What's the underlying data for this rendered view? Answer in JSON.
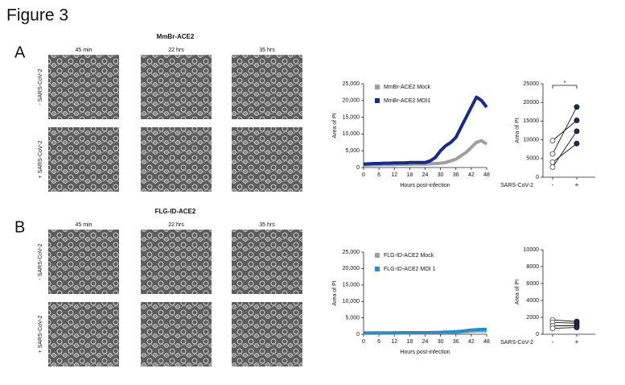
{
  "figure": {
    "title": "Figure 3",
    "panels": [
      {
        "label": "A",
        "title": "MmBr-ACE2",
        "columns": [
          "45 min",
          "22 hrs",
          "35 hrs"
        ],
        "rows": [
          "- SARS-CoV-2",
          "+ SARS-CoV-2"
        ]
      },
      {
        "label": "B",
        "title": "FLG-ID-ACE2",
        "columns": [
          "45 min",
          "22 hrs",
          "35 hrs"
        ],
        "rows": [
          "- SARS-CoV-2",
          "+ SARS-CoV-2"
        ]
      }
    ]
  },
  "chart_data": [
    {
      "type": "line",
      "xlabel": "Hours post-infection",
      "ylabel": "Area of PI",
      "legend": "upper left",
      "x": [
        0,
        2,
        4,
        6,
        8,
        10,
        12,
        14,
        16,
        18,
        20,
        22,
        24,
        26,
        28,
        30,
        32,
        34,
        36,
        38,
        40,
        42,
        44,
        46,
        48
      ],
      "xlim": [
        0,
        48
      ],
      "xticks": [
        0,
        6,
        12,
        18,
        24,
        30,
        36,
        42,
        48
      ],
      "ylim": [
        0,
        25000
      ],
      "yticks": [
        0,
        {
          "value": 5000,
          "label": "5,000"
        },
        {
          "value": 10000,
          "label": "10,000"
        },
        {
          "value": 15000,
          "label": "15,000"
        },
        {
          "value": 20000,
          "label": "20,000"
        },
        {
          "value": 25000,
          "label": "25,000"
        }
      ],
      "series": [
        {
          "name": "MmBr-ACE2 Mock",
          "color": "#9e9e9e",
          "values": [
            800,
            800,
            850,
            850,
            900,
            900,
            900,
            950,
            950,
            950,
            1000,
            1000,
            1000,
            1100,
            1200,
            1300,
            1500,
            2000,
            2500,
            3500,
            4500,
            6000,
            7500,
            8000,
            7000
          ]
        },
        {
          "name": "MmBr-ACE2 MOI1",
          "color": "#1a2a8c",
          "values": [
            1000,
            1100,
            1200,
            1200,
            1300,
            1300,
            1400,
            1400,
            1400,
            1500,
            1500,
            1500,
            1500,
            2000,
            3000,
            5000,
            6500,
            7500,
            9000,
            12000,
            15000,
            18000,
            21000,
            20000,
            18000
          ]
        }
      ]
    },
    {
      "type": "paired_dot",
      "xlabel": "SARS-CoV-2",
      "ylabel": "Area of PI",
      "annotation": "*",
      "color": "#1f2d5c",
      "categories": [
        "-",
        "+"
      ],
      "ylim": [
        0,
        25000
      ],
      "yticks": [
        0,
        5000,
        10000,
        15000,
        20000,
        25000
      ],
      "series": [
        {
          "values": [
            9800,
            15200
          ]
        },
        {
          "values": [
            6200,
            18800
          ]
        },
        {
          "values": [
            4000,
            9000
          ]
        },
        {
          "values": [
            2700,
            12300
          ]
        }
      ]
    },
    {
      "type": "line",
      "xlabel": "Hours post-infection",
      "ylabel": "Area of PI",
      "legend": "upper left",
      "x": [
        0,
        2,
        4,
        6,
        8,
        10,
        12,
        14,
        16,
        18,
        20,
        22,
        24,
        26,
        28,
        30,
        32,
        34,
        36,
        38,
        40,
        42,
        44,
        46,
        48
      ],
      "xlim": [
        0,
        48
      ],
      "xticks": [
        0,
        6,
        12,
        18,
        24,
        30,
        36,
        42,
        48
      ],
      "ylim": [
        0,
        25000
      ],
      "yticks": [
        0,
        {
          "value": 5000,
          "label": "5,000"
        },
        {
          "value": 10000,
          "label": "10,000"
        },
        {
          "value": 15000,
          "label": "15,000"
        },
        {
          "value": 20000,
          "label": "20,000"
        },
        {
          "value": 25000,
          "label": "25,000"
        }
      ],
      "series": [
        {
          "name": "FLG-ID-ACE2 Mock",
          "color": "#9e9e9e",
          "values": [
            300,
            300,
            320,
            330,
            340,
            350,
            350,
            360,
            370,
            380,
            400,
            400,
            400,
            420,
            450,
            480,
            500,
            550,
            600,
            700,
            800,
            900,
            1000,
            1000,
            1000
          ]
        },
        {
          "name": "FLG-ID-ACE2 MOI 1",
          "color": "#2b8cc4",
          "values": [
            400,
            400,
            420,
            430,
            440,
            450,
            460,
            470,
            480,
            490,
            500,
            500,
            500,
            520,
            550,
            600,
            650,
            700,
            800,
            900,
            1100,
            1300,
            1400,
            1500,
            1500
          ]
        }
      ]
    },
    {
      "type": "paired_dot",
      "xlabel": "SARS-CoV-2",
      "ylabel": "Area of PI",
      "color": "#1f2d5c",
      "categories": [
        "-",
        "+"
      ],
      "ylim": [
        0,
        10000
      ],
      "yticks": [
        0,
        2000,
        4000,
        6000,
        8000,
        10000
      ],
      "series": [
        {
          "values": [
            1700,
            1500
          ]
        },
        {
          "values": [
            1400,
            1300
          ]
        },
        {
          "values": [
            1000,
            1000
          ]
        },
        {
          "values": [
            700,
            800
          ]
        }
      ]
    }
  ]
}
